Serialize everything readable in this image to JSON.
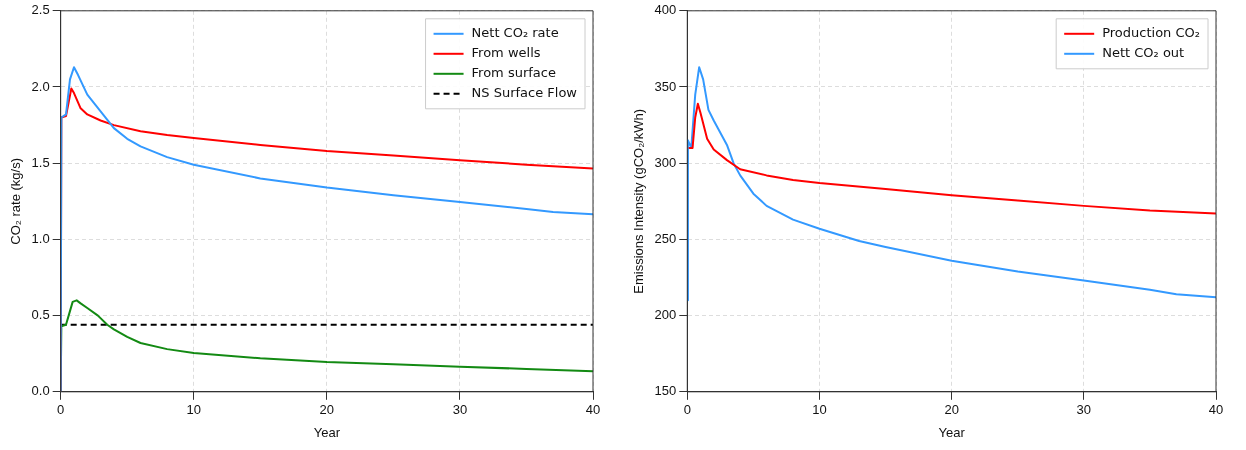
{
  "chart_data": [
    {
      "type": "line",
      "xlabel": "Year",
      "ylabel": "CO₂ rate (kg/s)",
      "xlim": [
        0,
        40
      ],
      "ylim": [
        0,
        2.5
      ],
      "xticks": [
        0,
        10,
        20,
        30,
        40
      ],
      "yticks": [
        {
          "value": 0,
          "label": "0.0"
        },
        {
          "value": 0.5,
          "label": "0.5"
        },
        {
          "value": 1,
          "label": "1.0"
        },
        {
          "value": 1.5,
          "label": "1.5"
        },
        {
          "value": 2,
          "label": "2.0"
        },
        {
          "value": 2.5,
          "label": "2.5"
        }
      ],
      "grid": true,
      "legend": "top right",
      "marker": "none",
      "series": [
        {
          "name": "Nett CO₂ rate",
          "color": "#3399ff",
          "x": [
            0,
            0.05,
            0.4,
            0.7,
            1,
            1.3,
            2,
            3,
            4,
            5,
            6,
            8,
            10,
            15,
            20,
            25,
            30,
            35,
            37,
            40
          ],
          "values": [
            0,
            1.8,
            1.82,
            2.05,
            2.13,
            2.08,
            1.95,
            1.84,
            1.73,
            1.66,
            1.61,
            1.54,
            1.49,
            1.4,
            1.34,
            1.29,
            1.245,
            1.2,
            1.18,
            1.165
          ]
        },
        {
          "name": "From wells",
          "color": "#ff0000",
          "x": [
            0,
            0.05,
            0.4,
            0.6,
            0.8,
            1,
            1.5,
            2,
            3,
            4,
            6,
            8,
            10,
            15,
            20,
            25,
            30,
            35,
            40
          ],
          "values": [
            0,
            1.8,
            1.81,
            1.9,
            1.99,
            1.96,
            1.86,
            1.82,
            1.78,
            1.75,
            1.71,
            1.685,
            1.665,
            1.62,
            1.58,
            1.55,
            1.52,
            1.49,
            1.465
          ]
        },
        {
          "name": "From surface",
          "color": "#138a13",
          "x": [
            0,
            0.05,
            0.4,
            0.6,
            0.9,
            1.2,
            1.5,
            2,
            2.8,
            3.5,
            4,
            5,
            6,
            8,
            10,
            15,
            20,
            25,
            30,
            35,
            40
          ],
          "values": [
            0,
            0.43,
            0.44,
            0.5,
            0.59,
            0.6,
            0.58,
            0.55,
            0.5,
            0.44,
            0.41,
            0.36,
            0.32,
            0.28,
            0.255,
            0.22,
            0.195,
            0.18,
            0.165,
            0.15,
            0.135
          ]
        },
        {
          "name": "NS Surface Flow",
          "color": "#000000",
          "line_style": "dashed",
          "x": [
            0,
            40
          ],
          "values": [
            0.44,
            0.44
          ]
        }
      ]
    },
    {
      "type": "line",
      "xlabel": "Year",
      "ylabel": "Emissions Intensity (gCO₂/kWh)",
      "xlim": [
        0,
        40
      ],
      "ylim": [
        150,
        400
      ],
      "xticks": [
        0,
        10,
        20,
        30,
        40
      ],
      "yticks": [
        150,
        200,
        250,
        300,
        350,
        400
      ],
      "grid": true,
      "legend": "top right",
      "marker": "none",
      "series": [
        {
          "name": "Production CO₂",
          "color": "#ff0000",
          "x": [
            0.1,
            0.4,
            0.6,
            0.8,
            1,
            1.5,
            2,
            3,
            4,
            6,
            8,
            10,
            15,
            20,
            25,
            30,
            35,
            40
          ],
          "values": [
            310,
            310,
            330,
            339,
            333,
            316,
            309,
            302,
            296,
            292,
            289,
            287,
            283,
            279,
            275.5,
            272,
            269,
            267
          ]
        },
        {
          "name": "Nett CO₂ out",
          "color": "#3399ff",
          "x": [
            0,
            0.05,
            0.3,
            0.6,
            0.9,
            1.2,
            1.6,
            2,
            3,
            3.5,
            4,
            5,
            6,
            8,
            10,
            13,
            15,
            20,
            25,
            30,
            35,
            37,
            40
          ],
          "values": [
            210,
            315,
            310,
            345,
            363,
            355,
            335,
            328,
            312,
            300,
            292,
            280,
            272,
            263,
            257,
            249,
            245,
            236,
            229,
            223,
            217,
            214,
            212
          ]
        }
      ]
    }
  ]
}
